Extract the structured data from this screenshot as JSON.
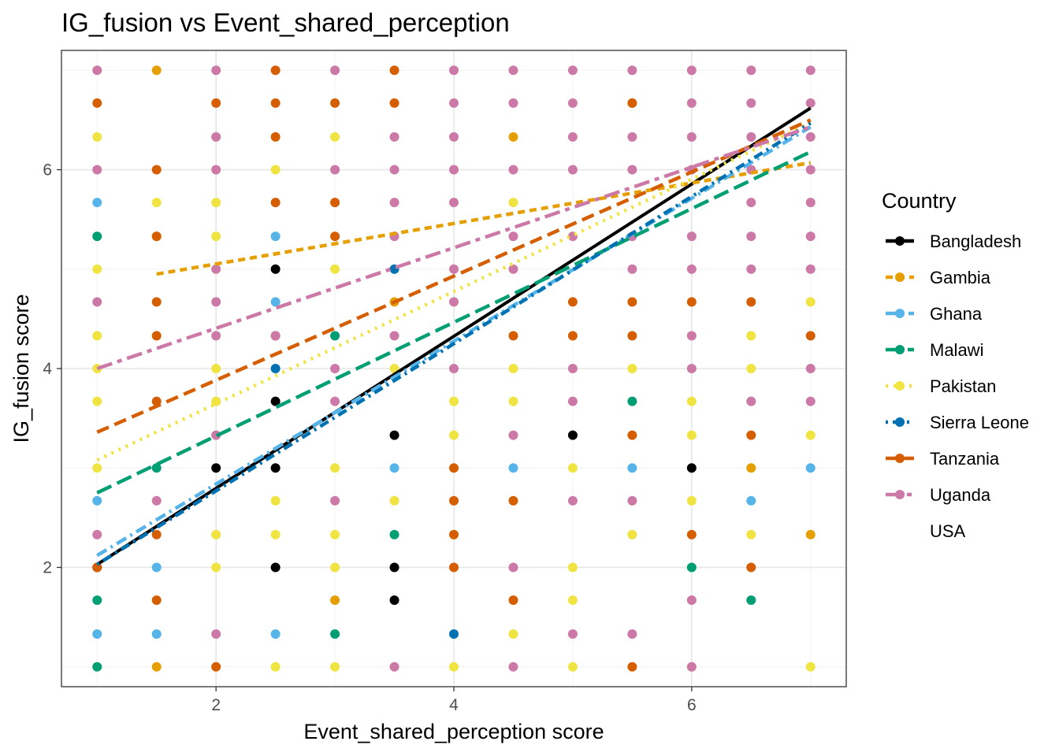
{
  "chart_data": {
    "type": "scatter",
    "title": "IG_fusion vs Event_shared_perception",
    "xlabel": "Event_shared_perception score",
    "ylabel": "IG_fusion score",
    "xlim": [
      0.7,
      7.3
    ],
    "ylim": [
      0.8,
      7.2
    ],
    "xticks": [
      2,
      4,
      6
    ],
    "yticks": [
      2,
      4,
      6
    ],
    "grid": true,
    "legend_title": "Country",
    "legend_position": "right",
    "series": [
      {
        "name": "Bangladesh",
        "color": "#000000",
        "dash": "solid",
        "line": {
          "x": [
            1,
            7
          ],
          "y": [
            2.03,
            6.62
          ]
        },
        "points": [
          [
            2,
            3
          ],
          [
            2.5,
            3
          ],
          [
            2.5,
            2
          ],
          [
            2.5,
            3.67
          ],
          [
            2.5,
            5
          ],
          [
            3.5,
            3.33
          ],
          [
            3.5,
            2
          ],
          [
            3.5,
            1.67
          ],
          [
            5,
            3.33
          ],
          [
            6,
            3
          ],
          [
            1,
            2
          ]
        ]
      },
      {
        "name": "Gambia",
        "color": "#E69F00",
        "dash": "short",
        "line": {
          "x": [
            1.5,
            7
          ],
          "y": [
            4.95,
            6.07
          ]
        },
        "points": [
          [
            1.5,
            7
          ],
          [
            1.5,
            1
          ],
          [
            3,
            1.67
          ],
          [
            4.5,
            6.33
          ],
          [
            5.5,
            6.67
          ],
          [
            6.5,
            3
          ],
          [
            7,
            2.33
          ],
          [
            3.5,
            4.67
          ],
          [
            1.5,
            5.33
          ]
        ]
      },
      {
        "name": "Ghana",
        "color": "#56B4E9",
        "dash": "dashdot",
        "line": {
          "x": [
            1,
            7
          ],
          "y": [
            2.12,
            6.43
          ]
        },
        "points": [
          [
            1,
            5.67
          ],
          [
            1,
            2.67
          ],
          [
            1,
            1.33
          ],
          [
            1.5,
            2
          ],
          [
            1.5,
            1.33
          ],
          [
            2.5,
            5.33
          ],
          [
            2.5,
            4.67
          ],
          [
            2.5,
            1.33
          ],
          [
            3.5,
            3
          ],
          [
            4.5,
            3
          ],
          [
            5.5,
            3
          ],
          [
            6.5,
            3.67
          ],
          [
            6.5,
            2.67
          ],
          [
            7,
            3
          ]
        ]
      },
      {
        "name": "Malawi",
        "color": "#009E73",
        "dash": "longdash",
        "line": {
          "x": [
            1,
            7
          ],
          "y": [
            2.75,
            6.18
          ]
        },
        "points": [
          [
            1,
            5.33
          ],
          [
            1,
            1.67
          ],
          [
            1,
            1
          ],
          [
            1.5,
            3
          ],
          [
            3,
            4.33
          ],
          [
            3,
            1.33
          ],
          [
            3.5,
            2.33
          ],
          [
            5.5,
            3.67
          ],
          [
            6,
            2
          ],
          [
            6.5,
            1.67
          ]
        ]
      },
      {
        "name": "Pakistan",
        "color": "#F0E442",
        "dash": "dotted",
        "line": {
          "x": [
            1,
            7
          ],
          "y": [
            3.08,
            6.47
          ]
        },
        "points": [
          [
            1,
            6.33
          ],
          [
            1,
            5
          ],
          [
            1,
            4.33
          ],
          [
            1,
            4
          ],
          [
            1,
            3.67
          ],
          [
            1,
            3
          ],
          [
            1.5,
            5.67
          ],
          [
            2,
            6.33
          ],
          [
            2,
            5.67
          ],
          [
            2,
            5.33
          ],
          [
            2,
            4
          ],
          [
            2,
            3.67
          ],
          [
            2,
            2.33
          ],
          [
            2,
            2
          ],
          [
            2.5,
            6
          ],
          [
            2.5,
            2.67
          ],
          [
            2.5,
            2.33
          ],
          [
            2.5,
            1
          ],
          [
            3,
            6.33
          ],
          [
            3,
            5
          ],
          [
            3,
            3
          ],
          [
            3,
            2.33
          ],
          [
            3,
            2
          ],
          [
            3,
            1
          ],
          [
            3.5,
            2.67
          ],
          [
            3.5,
            4
          ],
          [
            4,
            3.67
          ],
          [
            4,
            3.33
          ],
          [
            4,
            2.33
          ],
          [
            4,
            1
          ],
          [
            4.5,
            5.67
          ],
          [
            4.5,
            4
          ],
          [
            4.5,
            3.67
          ],
          [
            4.5,
            1.33
          ],
          [
            5,
            3
          ],
          [
            5,
            2
          ],
          [
            5,
            1.67
          ],
          [
            5,
            1
          ],
          [
            5.5,
            4
          ],
          [
            5.5,
            2.33
          ],
          [
            6,
            3.67
          ],
          [
            6,
            3.33
          ],
          [
            6,
            2.67
          ],
          [
            6,
            1
          ],
          [
            6.5,
            4.33
          ],
          [
            6.5,
            4
          ],
          [
            6.5,
            2.33
          ],
          [
            7,
            4.67
          ],
          [
            7,
            3.33
          ],
          [
            7,
            1
          ]
        ]
      },
      {
        "name": "Sierra Leone",
        "color": "#0072B2",
        "dash": "dotdash",
        "line": {
          "x": [
            1,
            7
          ],
          "y": [
            2.03,
            6.47
          ]
        },
        "points": [
          [
            2.5,
            4
          ],
          [
            3.5,
            5
          ],
          [
            4,
            1.33
          ]
        ]
      },
      {
        "name": "Tanzania",
        "color": "#D55E00",
        "dash": "dashed",
        "line": {
          "x": [
            1,
            7
          ],
          "y": [
            3.36,
            6.5
          ]
        },
        "points": [
          [
            1,
            6.67
          ],
          [
            1,
            2
          ],
          [
            1.5,
            6
          ],
          [
            1.5,
            5.33
          ],
          [
            1.5,
            4.67
          ],
          [
            1.5,
            4.33
          ],
          [
            1.5,
            3.67
          ],
          [
            1.5,
            2.33
          ],
          [
            1.5,
            1.67
          ],
          [
            2,
            6.67
          ],
          [
            2,
            1
          ],
          [
            2.5,
            7
          ],
          [
            2.5,
            6.67
          ],
          [
            2.5,
            6.33
          ],
          [
            2.5,
            5.67
          ],
          [
            2.5,
            4.33
          ],
          [
            3,
            6.67
          ],
          [
            3,
            5.67
          ],
          [
            3,
            5.33
          ],
          [
            3.5,
            7
          ],
          [
            3.5,
            6.67
          ],
          [
            4,
            3
          ],
          [
            4,
            2.67
          ],
          [
            4,
            2.33
          ],
          [
            4,
            2
          ],
          [
            4.5,
            4.33
          ],
          [
            4.5,
            2.67
          ],
          [
            4.5,
            1.67
          ],
          [
            5,
            4.67
          ],
          [
            5,
            4.33
          ],
          [
            5.5,
            6.67
          ],
          [
            5.5,
            4.67
          ],
          [
            5.5,
            4.33
          ],
          [
            5.5,
            3.33
          ],
          [
            5.5,
            1
          ],
          [
            6,
            4.67
          ],
          [
            6,
            2.33
          ],
          [
            6.5,
            4.67
          ],
          [
            6.5,
            3.33
          ],
          [
            6.5,
            2
          ],
          [
            7,
            4.33
          ]
        ]
      },
      {
        "name": "Uganda",
        "color": "#CC79A7",
        "dash": "twodash",
        "line": {
          "x": [
            1,
            7
          ],
          "y": [
            4.0,
            6.43
          ]
        },
        "points": [
          [
            1,
            7
          ],
          [
            1,
            6
          ],
          [
            1,
            4.67
          ],
          [
            1,
            2.33
          ],
          [
            1.5,
            2.67
          ],
          [
            2,
            7
          ],
          [
            2,
            6.33
          ],
          [
            2,
            6
          ],
          [
            2,
            5
          ],
          [
            2,
            4.67
          ],
          [
            2,
            4.33
          ],
          [
            2,
            3.33
          ],
          [
            2,
            1.33
          ],
          [
            2.5,
            4.33
          ],
          [
            3,
            7
          ],
          [
            3,
            6
          ],
          [
            3,
            4
          ],
          [
            3,
            3.67
          ],
          [
            3,
            2.67
          ],
          [
            3.5,
            6.33
          ],
          [
            3.5,
            6
          ],
          [
            3.5,
            5.67
          ],
          [
            3.5,
            5.33
          ],
          [
            3.5,
            4.33
          ],
          [
            3.5,
            1
          ],
          [
            4,
            7
          ],
          [
            4,
            6.67
          ],
          [
            4,
            6.33
          ],
          [
            4,
            6
          ],
          [
            4,
            5.67
          ],
          [
            4,
            5
          ],
          [
            4,
            4.67
          ],
          [
            4,
            4
          ],
          [
            4.5,
            7
          ],
          [
            4.5,
            6.67
          ],
          [
            4.5,
            6
          ],
          [
            4.5,
            5.33
          ],
          [
            4.5,
            5
          ],
          [
            4.5,
            3.33
          ],
          [
            4.5,
            2
          ],
          [
            4.5,
            1
          ],
          [
            5,
            7
          ],
          [
            5,
            6.67
          ],
          [
            5,
            6.33
          ],
          [
            5,
            6
          ],
          [
            5,
            5.33
          ],
          [
            5,
            4
          ],
          [
            5,
            3.67
          ],
          [
            5,
            2.67
          ],
          [
            5,
            1.33
          ],
          [
            5.5,
            7
          ],
          [
            5.5,
            6.33
          ],
          [
            5.5,
            6
          ],
          [
            5.5,
            5.33
          ],
          [
            5.5,
            5
          ],
          [
            5.5,
            2.67
          ],
          [
            5.5,
            1.33
          ],
          [
            6,
            7
          ],
          [
            6,
            6.67
          ],
          [
            6,
            6.33
          ],
          [
            6,
            6
          ],
          [
            6,
            5.33
          ],
          [
            6,
            5
          ],
          [
            6,
            4.33
          ],
          [
            6,
            4
          ],
          [
            6,
            1.67
          ],
          [
            6,
            1
          ],
          [
            6.5,
            7
          ],
          [
            6.5,
            6.67
          ],
          [
            6.5,
            6.33
          ],
          [
            6.5,
            6
          ],
          [
            6.5,
            5.67
          ],
          [
            6.5,
            5.33
          ],
          [
            6.5,
            5
          ],
          [
            6.5,
            3.67
          ],
          [
            7,
            7
          ],
          [
            7,
            6.67
          ],
          [
            7,
            6.33
          ],
          [
            7,
            6
          ],
          [
            7,
            5.67
          ],
          [
            7,
            5.33
          ],
          [
            7,
            5
          ],
          [
            7,
            4
          ],
          [
            7,
            3.67
          ]
        ]
      },
      {
        "name": "USA",
        "color": "#ffffff",
        "dash": "none",
        "line": null,
        "points": []
      }
    ]
  }
}
